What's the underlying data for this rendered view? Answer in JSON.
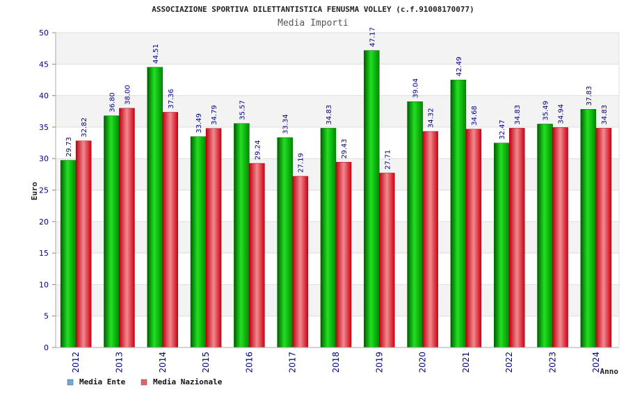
{
  "chart_data": {
    "type": "bar",
    "title": "ASSOCIAZIONE SPORTIVA DILETTANTISTICA FENUSMA VOLLEY (c.f.91008170077)",
    "subtitle": "Media Importi",
    "xlabel": "Anno",
    "ylabel": "Euro",
    "ylim": [
      0,
      50
    ],
    "yticks": [
      "0",
      "5",
      "10",
      "15",
      "20",
      "25",
      "30",
      "35",
      "40",
      "45",
      "50"
    ],
    "grid": true,
    "legend_position": "bottom-left",
    "categories": [
      "2012",
      "2013",
      "2014",
      "2015",
      "2016",
      "2017",
      "2018",
      "2019",
      "2020",
      "2021",
      "2022",
      "2023",
      "2024"
    ],
    "series": [
      {
        "name": "Media Ente",
        "color": "#00b000",
        "legend_color": "#6fa8dc",
        "values": [
          29.73,
          36.8,
          44.51,
          33.49,
          35.57,
          33.34,
          34.83,
          47.17,
          39.04,
          42.49,
          32.47,
          35.49,
          37.83
        ],
        "labels": [
          "29.73",
          "36.80",
          "44.51",
          "33.49",
          "35.57",
          "33.34",
          "34.83",
          "47.17",
          "39.04",
          "42.49",
          "32.47",
          "35.49",
          "37.83"
        ]
      },
      {
        "name": "Media Nazionale",
        "color": "#e8101c",
        "legend_color": "#e06666",
        "values": [
          32.82,
          38.0,
          37.36,
          34.79,
          29.24,
          27.19,
          29.43,
          27.71,
          34.32,
          34.68,
          34.83,
          34.94,
          34.83
        ],
        "labels": [
          "32.82",
          "38.00",
          "37.36",
          "34.79",
          "29.24",
          "27.19",
          "29.43",
          "27.71",
          "34.32",
          "34.68",
          "34.83",
          "34.94",
          "34.83"
        ]
      }
    ]
  }
}
